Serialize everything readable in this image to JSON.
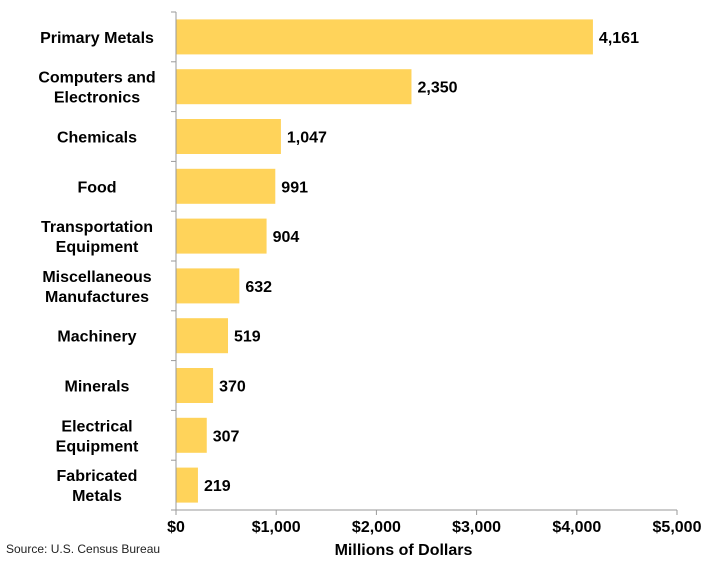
{
  "chart_data": {
    "type": "bar",
    "orientation": "horizontal",
    "categories": [
      [
        "Primary Metals"
      ],
      [
        "Computers and",
        "Electronics"
      ],
      [
        "Chemicals"
      ],
      [
        "Food"
      ],
      [
        "Transportation",
        "Equipment"
      ],
      [
        "Miscellaneous",
        "Manufactures"
      ],
      [
        "Machinery"
      ],
      [
        "Minerals"
      ],
      [
        "Electrical",
        "Equipment"
      ],
      [
        "Fabricated",
        "Metals"
      ]
    ],
    "values": [
      4161,
      2350,
      1047,
      991,
      904,
      632,
      519,
      370,
      307,
      219
    ],
    "value_labels": [
      "4,161",
      "2,350",
      "1,047",
      "991",
      "904",
      "632",
      "519",
      "370",
      "307",
      "219"
    ],
    "xlabel": "Millions of Dollars",
    "xlim": [
      0,
      5000
    ],
    "xticks": [
      0,
      1000,
      2000,
      3000,
      4000,
      5000
    ],
    "xtick_labels": [
      "$0",
      "$1,000",
      "$2,000",
      "$3,000",
      "$4,000",
      "$5,000"
    ],
    "grid": false,
    "bar_color": "#FFD35A"
  },
  "source": "Source: U.S. Census Bureau"
}
